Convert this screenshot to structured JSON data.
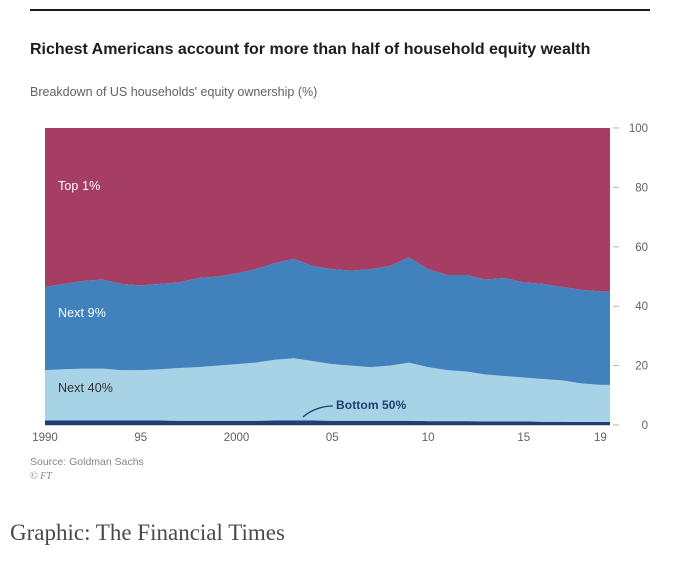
{
  "header": {
    "title": "Richest Americans account for more than half of household equity wealth",
    "subtitle": "Breakdown of US households' equity ownership (%)"
  },
  "source": {
    "line1": "Source: Goldman Sachs",
    "line2": "© FT"
  },
  "footer": {
    "credit": "Graphic: The Financial Times"
  },
  "colors": {
    "background": "#ffffff",
    "top_rule": "#1a1a1a",
    "axis_text": "#66605c",
    "tick_mark": "#b8b2ac",
    "axis_line": "#d0cbc6"
  },
  "chart_data": {
    "type": "area",
    "stacked": true,
    "title": "Richest Americans account for more than half of household equity wealth",
    "subtitle": "Breakdown of US households' equity ownership (%)",
    "xlabel": "",
    "ylabel": "",
    "grid": false,
    "legend_position": "inside",
    "xlim": [
      1990,
      2019.5
    ],
    "ylim": [
      0,
      100
    ],
    "y_ticks": [
      0,
      20,
      40,
      60,
      80,
      100
    ],
    "x_ticks": [
      {
        "year": 1990,
        "label": "1990"
      },
      {
        "year": 1995,
        "label": "95"
      },
      {
        "year": 2000,
        "label": "2000"
      },
      {
        "year": 2005,
        "label": "05"
      },
      {
        "year": 2010,
        "label": "10"
      },
      {
        "year": 2015,
        "label": "15"
      },
      {
        "year": 2019,
        "label": "19"
      }
    ],
    "x": [
      1990,
      1991,
      1992,
      1993,
      1994,
      1995,
      1996,
      1997,
      1998,
      1999,
      2000,
      2001,
      2002,
      2003,
      2004,
      2005,
      2006,
      2007,
      2008,
      2009,
      2010,
      2011,
      2012,
      2013,
      2014,
      2015,
      2016,
      2017,
      2018,
      2019,
      2019.5
    ],
    "stack_order": "bottom-up",
    "series": [
      {
        "name": "Bottom 50%",
        "color": "#1f3e73",
        "values": [
          1.5,
          1.5,
          1.5,
          1.5,
          1.5,
          1.5,
          1.5,
          1.4,
          1.4,
          1.4,
          1.4,
          1.4,
          1.5,
          1.5,
          1.5,
          1.4,
          1.4,
          1.4,
          1.4,
          1.4,
          1.3,
          1.3,
          1.3,
          1.2,
          1.2,
          1.2,
          1.1,
          1.1,
          1.0,
          1.0,
          1.0
        ]
      },
      {
        "name": "Next 40%",
        "color": "#a8d3e6",
        "values": [
          17.0,
          17.3,
          17.5,
          17.5,
          17.0,
          17.0,
          17.3,
          17.8,
          18.1,
          18.6,
          19.1,
          19.6,
          20.5,
          21.0,
          20.0,
          19.1,
          18.6,
          18.1,
          18.6,
          19.6,
          18.2,
          17.2,
          16.7,
          15.8,
          15.3,
          14.8,
          14.4,
          13.9,
          13.0,
          12.5,
          12.5
        ]
      },
      {
        "name": "Next 9%",
        "color": "#4181bc",
        "values": [
          28.0,
          28.7,
          29.5,
          30.0,
          29.0,
          28.5,
          28.7,
          28.8,
          30.0,
          30.0,
          30.5,
          31.5,
          32.5,
          33.5,
          32.0,
          32.0,
          32.0,
          33.0,
          33.5,
          35.5,
          33.0,
          32.0,
          32.5,
          32.0,
          33.0,
          32.0,
          32.0,
          31.5,
          31.5,
          31.5,
          31.5
        ]
      },
      {
        "name": "Top 1%",
        "color": "#a63d62",
        "values": [
          53.5,
          52.5,
          51.5,
          51.0,
          52.5,
          53.0,
          52.5,
          52.0,
          50.5,
          50.0,
          49.0,
          47.5,
          45.5,
          44.0,
          46.5,
          47.5,
          48.0,
          47.5,
          46.5,
          43.5,
          47.5,
          49.5,
          49.5,
          51.0,
          50.5,
          52.0,
          52.5,
          53.5,
          54.5,
          55.0,
          55.0
        ]
      }
    ]
  }
}
